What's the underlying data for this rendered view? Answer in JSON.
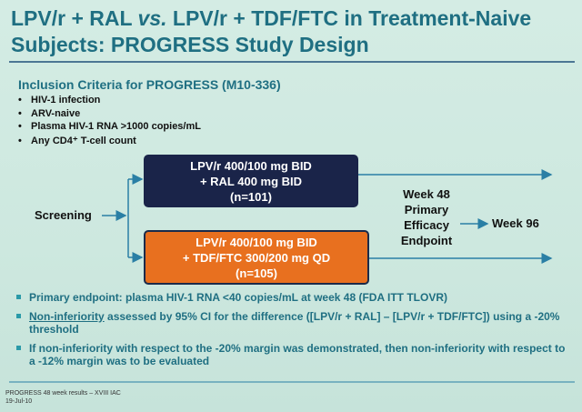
{
  "header": {
    "title_before": "LPV/r + RAL",
    "title_italic": "vs.",
    "title_after": "LPV/r + TDF/FTC in Treatment-Naive Subjects: PROGRESS Study Design"
  },
  "inclusion": {
    "heading": "Inclusion Criteria for PROGRESS (M10-336)",
    "items": [
      "HIV-1 infection",
      "ARV-naive",
      "Plasma HIV-1 RNA >1000 copies/mL",
      "Any CD4⁺ T-cell count"
    ]
  },
  "design": {
    "screening": "Screening",
    "arm1": [
      "LPV/r 400/100 mg BID",
      "+ RAL 400 mg BID",
      "(n=101)"
    ],
    "arm2": [
      "LPV/r 400/100 mg BID",
      "+ TDF/FTC 300/200 mg QD",
      "(n=105)"
    ],
    "week48": [
      "Week 48",
      "Primary",
      "Efficacy",
      "Endpoint"
    ],
    "week96": "Week 96"
  },
  "bullets": {
    "primary": "Primary endpoint: plasma HIV-1 RNA <40 copies/mL at week 48 (FDA ITT TLOVR)",
    "noninf_underlined": "Non-inferiority",
    "noninf_rest": "assessed by 95% CI for the difference ([LPV/r + RAL] – [LPV/r + TDF/FTC]) using a -20% threshold",
    "margin": "If non-inferiority with respect to the -20% margin was demonstrated, then non-inferiority with respect to a -12% margin was to be evaluated"
  },
  "footer": {
    "line1": "PROGRESS 48 week results – XVIII IAC",
    "line2": "19-Jul-10"
  }
}
